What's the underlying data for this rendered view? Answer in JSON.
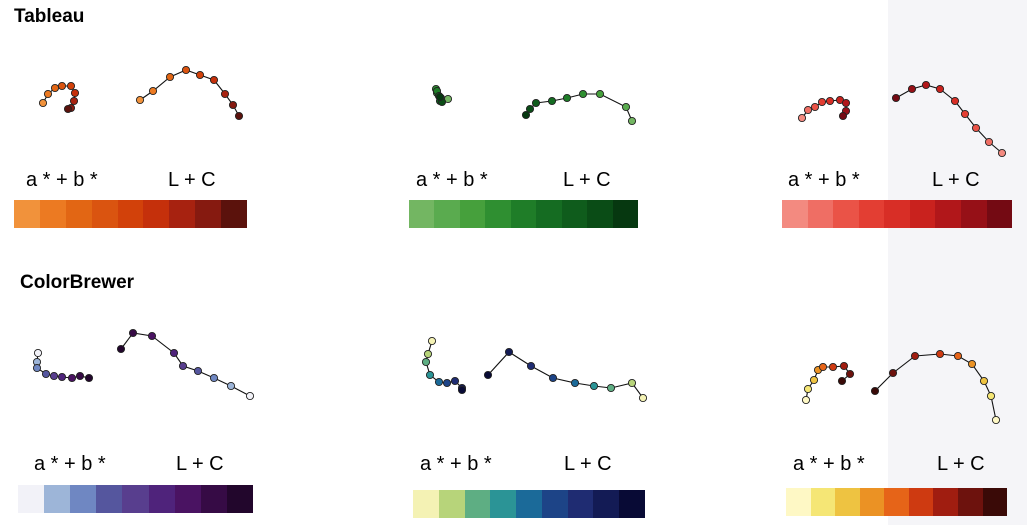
{
  "sections": [
    {
      "title": "Tableau",
      "panels": [
        {
          "label_ab": "a * + b *",
          "label_lc": "L + C",
          "swatches": [
            "#f1923b",
            "#ec7a22",
            "#e26614",
            "#da5410",
            "#d2410a",
            "#c5300b",
            "#a72210",
            "#861a10",
            "#5b120c"
          ]
        },
        {
          "label_ab": "a * + b *",
          "label_lc": "L + C",
          "swatches": [
            "#73b662",
            "#5aab4f",
            "#46a03c",
            "#2f8f31",
            "#1f7d28",
            "#156c22",
            "#0f5c1c",
            "#0a4c16",
            "#063810"
          ]
        },
        {
          "label_ab": "a * + b *",
          "label_lc": "L + C",
          "swatches": [
            "#f38a80",
            "#ef6e64",
            "#ea5347",
            "#e33e33",
            "#d82e26",
            "#c9221e",
            "#b1171a",
            "#961017",
            "#740a13"
          ]
        }
      ]
    },
    {
      "title": "ColorBrewer",
      "panels": [
        {
          "label_ab": "a * + b *",
          "label_lc": "L + C",
          "swatches": [
            "#f2f2f8",
            "#9db5d8",
            "#6f87c2",
            "#55569e",
            "#583e8e",
            "#4f237b",
            "#4a1362",
            "#360b45",
            "#22062c"
          ]
        },
        {
          "label_ab": "a * + b *",
          "label_lc": "L + C",
          "swatches": [
            "#f4f2b4",
            "#b7d47a",
            "#5eae83",
            "#2b9496",
            "#1b6a99",
            "#1d4487",
            "#1f2c72",
            "#131b55",
            "#080a35"
          ]
        },
        {
          "label_ab": "a * + b *",
          "label_lc": "L + C",
          "swatches": [
            "#fef8c5",
            "#f5e675",
            "#eec341",
            "#eb9224",
            "#e66418",
            "#ce3a11",
            "#a01d10",
            "#6d120d",
            "#3a0a07"
          ]
        }
      ]
    }
  ]
}
